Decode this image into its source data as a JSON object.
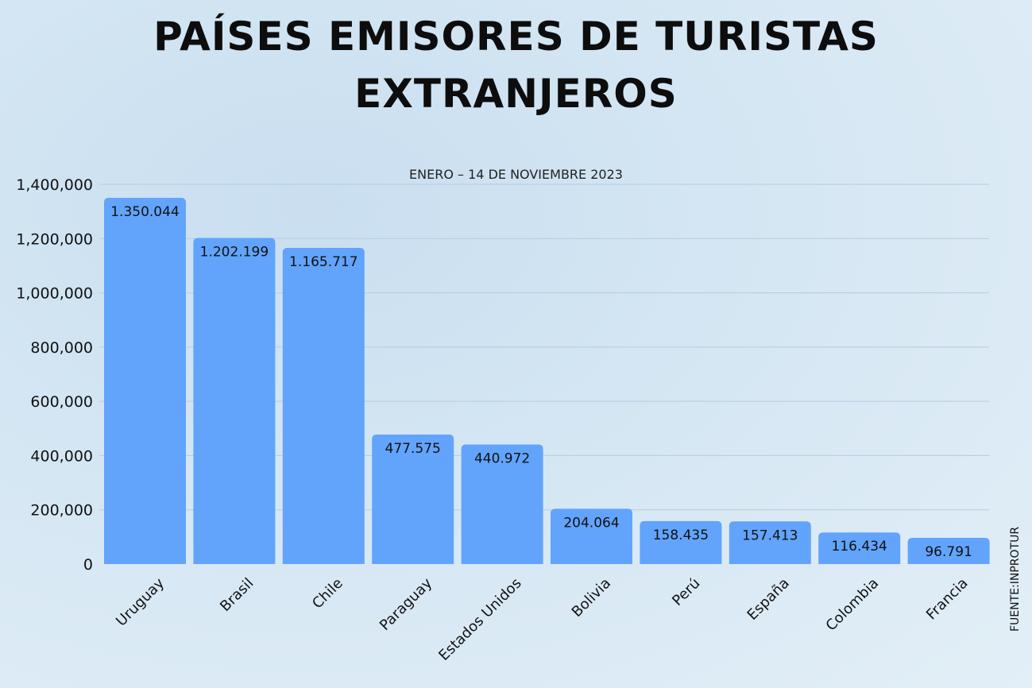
{
  "chart_data": {
    "type": "bar",
    "title": "PAÍSES EMISORES DE TURISTAS EXTRANJEROS",
    "subtitle": "ENERO – 14 DE NOVIEMBRE 2023",
    "source": "FUENTE:INPROTUR",
    "categories": [
      "Uruguay",
      "Brasil",
      "Chile",
      "Paraguay",
      "Estados Unidos",
      "Bolivia",
      "Perú",
      "España",
      "Colombia",
      "Francia"
    ],
    "values": [
      1350044,
      1202199,
      1165717,
      477575,
      440972,
      204064,
      158435,
      157413,
      116434,
      96791
    ],
    "data_labels": [
      "1.350.044",
      "1.202.199",
      "1.165.717",
      "477.575",
      "440.972",
      "204.064",
      "158.435",
      "157.413",
      "116.434",
      "96.791"
    ],
    "yticks": [
      "0",
      "200,000",
      "400,000",
      "600,000",
      "800,000",
      "1,000,000",
      "1,200,000",
      "1,400,000"
    ],
    "ylim": [
      0,
      1400000
    ],
    "grid": true,
    "xlabel": "",
    "ylabel": "",
    "bar_color": "#62a4fb"
  }
}
